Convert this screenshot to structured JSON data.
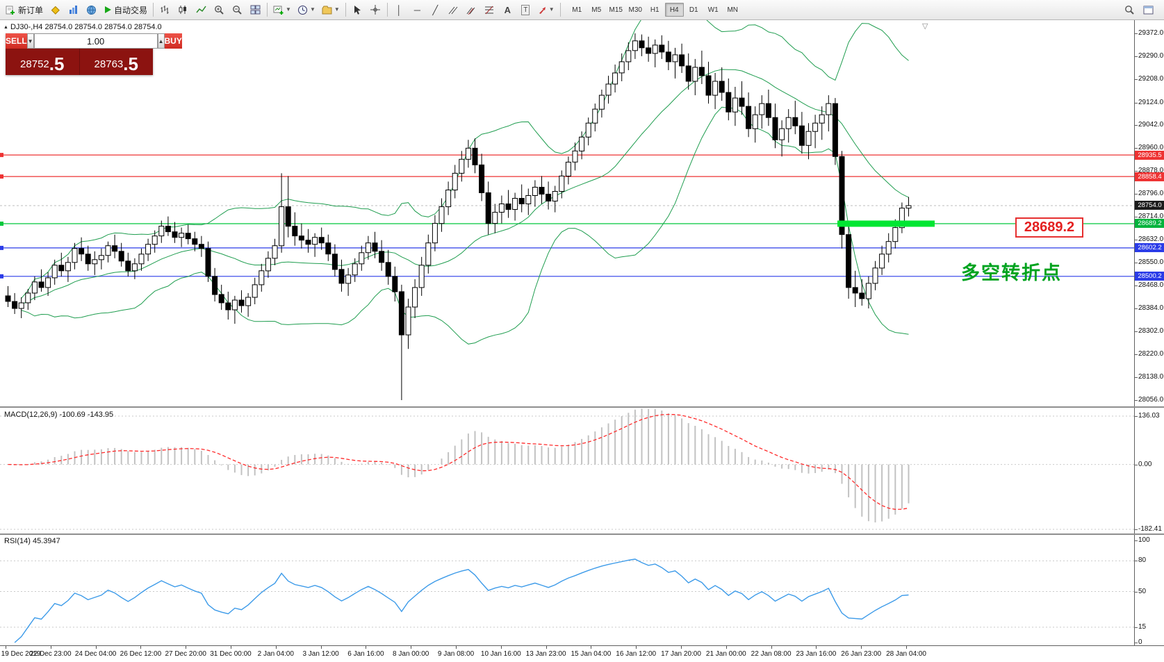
{
  "toolbar": {
    "new_order": "新订单",
    "auto_trading": "自动交易",
    "timeframes": [
      "M1",
      "M5",
      "M15",
      "M30",
      "H1",
      "H4",
      "D1",
      "W1",
      "MN"
    ],
    "active_timeframe": "H4"
  },
  "chart": {
    "symbol_line": "DJ30-,H4  28754.0 28754.0 28754.0 28754.0"
  },
  "trade_panel": {
    "sell_label": "SELL",
    "buy_label": "BUY",
    "volume": "1.00",
    "sell_price_int": "28752",
    "sell_price_frac": ".5",
    "buy_price_int": "28763",
    "buy_price_frac": ".5"
  },
  "annotations": {
    "price_callout": "28689.2",
    "turning_point": "多空转折点"
  },
  "macd": {
    "label": "MACD(12,26,9) -100.69 -143.95",
    "axis": [
      136.03,
      0,
      -182.41
    ]
  },
  "rsi": {
    "label": "RSI(14) 45.3947",
    "levels": [
      100,
      80,
      50,
      15,
      0
    ]
  },
  "time_axis": [
    "19 Dec 2019",
    "22 Dec 23:00",
    "24 Dec 04:00",
    "26 Dec 12:00",
    "27 Dec 20:00",
    "31 Dec 00:00",
    "2 Jan 04:00",
    "3 Jan 12:00",
    "6 Jan 16:00",
    "8 Jan 00:00",
    "9 Jan 08:00",
    "10 Jan 16:00",
    "13 Jan 23:00",
    "15 Jan 04:00",
    "16 Jan 12:00",
    "17 Jan 20:00",
    "21 Jan 00:00",
    "22 Jan 08:00",
    "23 Jan 16:00",
    "26 Jan 23:00",
    "28 Jan 04:00"
  ],
  "price_axis": {
    "ticks": [
      29372,
      29290,
      29208,
      29124,
      29042,
      28960,
      28878,
      28796,
      28714,
      28632,
      28550,
      28468,
      28384,
      28302,
      28220,
      28138,
      28056
    ],
    "badges": [
      {
        "value": 28935.5,
        "color": "#ee3333"
      },
      {
        "value": 28858.4,
        "color": "#ee3333"
      },
      {
        "value": 28754.0,
        "color": "#1c1c1c"
      },
      {
        "value": 28689.2,
        "color": "#00b33c"
      },
      {
        "value": 28602.2,
        "color": "#2b3ce8"
      },
      {
        "value": 28500.2,
        "color": "#2b3ce8"
      }
    ]
  },
  "chart_data": {
    "type": "candlestick",
    "symbol": "DJ30-",
    "timeframe": "H4",
    "ohlc_current": [
      28754.0,
      28754.0,
      28754.0,
      28754.0
    ],
    "bid": 28752.5,
    "ask": 28763.5,
    "y_range": [
      28056,
      29372
    ],
    "indicators": [
      "Bollinger Bands(20,2)",
      "MACD(12,26,9)",
      "RSI(14)"
    ],
    "horizontal_lines": [
      {
        "price": 28935.5,
        "color": "#ee3333"
      },
      {
        "price": 28858.4,
        "color": "#ee3333"
      },
      {
        "price": 28689.2,
        "color": "#00c83c"
      },
      {
        "price": 28602.2,
        "color": "#2b3ce8"
      },
      {
        "price": 28500.2,
        "color": "#2b3ce8"
      }
    ],
    "highlight_zone": {
      "price": 28689.2,
      "color": "#00e632"
    },
    "candles": [
      [
        28430,
        28465,
        28390,
        28410
      ],
      [
        28410,
        28440,
        28365,
        28385
      ],
      [
        28385,
        28425,
        28350,
        28405
      ],
      [
        28405,
        28455,
        28380,
        28440
      ],
      [
        28440,
        28500,
        28415,
        28480
      ],
      [
        28480,
        28525,
        28445,
        28460
      ],
      [
        28460,
        28515,
        28430,
        28495
      ],
      [
        28495,
        28560,
        28470,
        28540
      ],
      [
        28540,
        28585,
        28500,
        28520
      ],
      [
        28520,
        28570,
        28480,
        28550
      ],
      [
        28550,
        28620,
        28525,
        28600
      ],
      [
        28600,
        28640,
        28555,
        28580
      ],
      [
        28580,
        28610,
        28520,
        28545
      ],
      [
        28545,
        28590,
        28505,
        28560
      ],
      [
        28560,
        28600,
        28525,
        28575
      ],
      [
        28575,
        28625,
        28550,
        28610
      ],
      [
        28610,
        28650,
        28565,
        28590
      ],
      [
        28590,
        28620,
        28535,
        28555
      ],
      [
        28555,
        28585,
        28500,
        28520
      ],
      [
        28520,
        28565,
        28490,
        28545
      ],
      [
        28545,
        28600,
        28520,
        28580
      ],
      [
        28580,
        28635,
        28555,
        28615
      ],
      [
        28615,
        28665,
        28585,
        28645
      ],
      [
        28645,
        28700,
        28620,
        28680
      ],
      [
        28680,
        28715,
        28645,
        28660
      ],
      [
        28660,
        28695,
        28620,
        28640
      ],
      [
        28640,
        28675,
        28605,
        28655
      ],
      [
        28655,
        28685,
        28615,
        28635
      ],
      [
        28635,
        28660,
        28590,
        28615
      ],
      [
        28615,
        28645,
        28570,
        28600
      ],
      [
        28600,
        28625,
        28480,
        28500
      ],
      [
        28500,
        28530,
        28410,
        28435
      ],
      [
        28435,
        28470,
        28380,
        28405
      ],
      [
        28405,
        28445,
        28345,
        28380
      ],
      [
        28380,
        28430,
        28330,
        28415
      ],
      [
        28415,
        28450,
        28370,
        28395
      ],
      [
        28395,
        28440,
        28355,
        28425
      ],
      [
        28425,
        28495,
        28400,
        28470
      ],
      [
        28470,
        28545,
        28445,
        28520
      ],
      [
        28520,
        28590,
        28495,
        28565
      ],
      [
        28565,
        28635,
        28540,
        28610
      ],
      [
        28610,
        28870,
        28585,
        28750
      ],
      [
        28750,
        28860,
        28640,
        28680
      ],
      [
        28680,
        28730,
        28610,
        28645
      ],
      [
        28645,
        28690,
        28600,
        28630
      ],
      [
        28630,
        28670,
        28585,
        28615
      ],
      [
        28615,
        28655,
        28570,
        28640
      ],
      [
        28640,
        28675,
        28595,
        28620
      ],
      [
        28620,
        28650,
        28555,
        28580
      ],
      [
        28580,
        28615,
        28500,
        28525
      ],
      [
        28525,
        28560,
        28445,
        28475
      ],
      [
        28475,
        28530,
        28430,
        28505
      ],
      [
        28505,
        28565,
        28480,
        28545
      ],
      [
        28545,
        28610,
        28520,
        28585
      ],
      [
        28585,
        28645,
        28560,
        28620
      ],
      [
        28620,
        28660,
        28565,
        28590
      ],
      [
        28590,
        28630,
        28520,
        28550
      ],
      [
        28550,
        28595,
        28470,
        28500
      ],
      [
        28500,
        28535,
        28410,
        28445
      ],
      [
        28445,
        28470,
        28056,
        28290
      ],
      [
        28290,
        28420,
        28240,
        28390
      ],
      [
        28390,
        28490,
        28350,
        28460
      ],
      [
        28460,
        28570,
        28430,
        28540
      ],
      [
        28540,
        28650,
        28510,
        28620
      ],
      [
        28620,
        28720,
        28590,
        28690
      ],
      [
        28690,
        28780,
        28660,
        28750
      ],
      [
        28750,
        28840,
        28720,
        28810
      ],
      [
        28810,
        28900,
        28780,
        28870
      ],
      [
        28870,
        28950,
        28840,
        28920
      ],
      [
        28920,
        28990,
        28890,
        28960
      ],
      [
        28960,
        28995,
        28870,
        28900
      ],
      [
        28900,
        28940,
        28770,
        28800
      ],
      [
        28800,
        28840,
        28650,
        28690
      ],
      [
        28690,
        28760,
        28655,
        28730
      ],
      [
        28730,
        28790,
        28690,
        28760
      ],
      [
        28760,
        28810,
        28710,
        28740
      ],
      [
        28740,
        28800,
        28700,
        28780
      ],
      [
        28780,
        28830,
        28730,
        28760
      ],
      [
        28760,
        28815,
        28720,
        28790
      ],
      [
        28790,
        28845,
        28750,
        28820
      ],
      [
        28820,
        28860,
        28760,
        28795
      ],
      [
        28795,
        28840,
        28740,
        28770
      ],
      [
        28770,
        28825,
        28730,
        28805
      ],
      [
        28805,
        28880,
        28780,
        28860
      ],
      [
        28860,
        28930,
        28830,
        28910
      ],
      [
        28910,
        28980,
        28880,
        28950
      ],
      [
        28950,
        29020,
        28920,
        29000
      ],
      [
        29000,
        29070,
        28970,
        29050
      ],
      [
        29050,
        29120,
        29020,
        29100
      ],
      [
        29100,
        29170,
        29070,
        29150
      ],
      [
        29150,
        29220,
        29120,
        29190
      ],
      [
        29190,
        29260,
        29160,
        29230
      ],
      [
        29230,
        29300,
        29200,
        29270
      ],
      [
        29270,
        29340,
        29240,
        29310
      ],
      [
        29310,
        29372,
        29280,
        29345
      ],
      [
        29345,
        29368,
        29290,
        29320
      ],
      [
        29320,
        29360,
        29270,
        29300
      ],
      [
        29300,
        29350,
        29250,
        29330
      ],
      [
        29330,
        29365,
        29280,
        29305
      ],
      [
        29305,
        29345,
        29240,
        29270
      ],
      [
        29270,
        29320,
        29210,
        29295
      ],
      [
        29295,
        29335,
        29230,
        29255
      ],
      [
        29255,
        29300,
        29170,
        29200
      ],
      [
        29200,
        29280,
        29150,
        29250
      ],
      [
        29250,
        29310,
        29190,
        29220
      ],
      [
        29220,
        29270,
        29120,
        29150
      ],
      [
        29150,
        29230,
        29100,
        29200
      ],
      [
        29200,
        29250,
        29130,
        29160
      ],
      [
        29160,
        29210,
        29060,
        29090
      ],
      [
        29090,
        29180,
        29040,
        29140
      ],
      [
        29140,
        29200,
        29080,
        29110
      ],
      [
        29110,
        29160,
        29000,
        29030
      ],
      [
        29030,
        29110,
        28980,
        29080
      ],
      [
        29080,
        29150,
        29030,
        29120
      ],
      [
        29120,
        29170,
        29040,
        29070
      ],
      [
        29070,
        29120,
        28960,
        28990
      ],
      [
        28990,
        29060,
        28930,
        29030
      ],
      [
        29030,
        29100,
        28980,
        29070
      ],
      [
        29070,
        29130,
        29010,
        29040
      ],
      [
        29040,
        29090,
        28940,
        28970
      ],
      [
        28970,
        29050,
        28920,
        29020
      ],
      [
        29020,
        29080,
        28960,
        29050
      ],
      [
        29050,
        29110,
        28990,
        29080
      ],
      [
        29080,
        29150,
        29020,
        29120
      ],
      [
        29120,
        29140,
        28900,
        28930
      ],
      [
        28930,
        28950,
        28600,
        28650
      ],
      [
        28650,
        28680,
        28420,
        28460
      ],
      [
        28460,
        28520,
        28390,
        28440
      ],
      [
        28440,
        28490,
        28395,
        28420
      ],
      [
        28420,
        28500,
        28385,
        28475
      ],
      [
        28475,
        28555,
        28450,
        28530
      ],
      [
        28530,
        28610,
        28505,
        28580
      ],
      [
        28580,
        28655,
        28550,
        28625
      ],
      [
        28625,
        28705,
        28600,
        28675
      ],
      [
        28675,
        28765,
        28655,
        28745
      ],
      [
        28745,
        28785,
        28715,
        28754
      ]
    ]
  }
}
